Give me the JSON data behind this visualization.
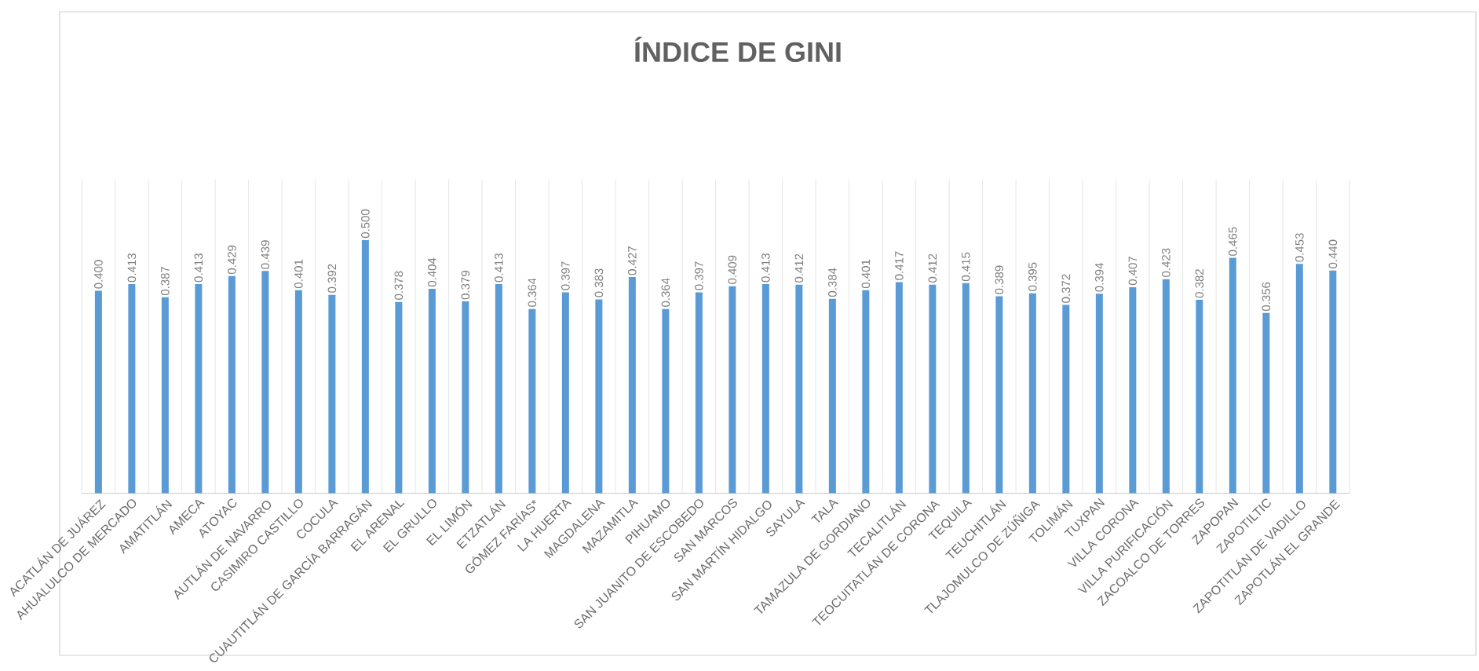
{
  "chart_data": {
    "type": "bar",
    "title": "ÍNDICE DE GINI",
    "categories": [
      "ACATLÁN DE JUÁREZ",
      "AHUALULCO DE MERCADO",
      "AMATITLÁN",
      "AMECA",
      "ATOYAC",
      "AUTLÁN DE NAVARRO",
      "CASIMIRO CASTILLO",
      "COCULA",
      "CUAUTITLÁN DE GARCÍA BARRAGÁN",
      "EL ARENAL",
      "EL GRULLO",
      "EL LIMÓN",
      "ETZATLÁN",
      "GÓMEZ FARÍAS*",
      "LA HUERTA",
      "MAGDALENA",
      "MAZAMITLA",
      "PIHUAMO",
      "SAN JUANITO DE ESCOBEDO",
      "SAN MARCOS",
      "SAN MARTÍN HIDALGO",
      "SAYULA",
      "TALA",
      "TAMAZULA DE GORDIANO",
      "TECALITLÁN",
      "TEOCUITATLÁN DE CORONA",
      "TEQUILA",
      "TEUCHITLÁN",
      "TLAJOMULCO DE ZÚÑIGA",
      "TOLIMÁN",
      "TUXPAN",
      "VILLA CORONA",
      "VILLA PURIFICACIÓN",
      "ZACOALCO DE TORRES",
      "ZAPOPAN",
      "ZAPOTILTIC",
      "ZAPOTITLÁN DE VADILLO",
      "ZAPOTLÁN EL GRANDE"
    ],
    "values": [
      0.4,
      0.413,
      0.387,
      0.413,
      0.429,
      0.439,
      0.401,
      0.392,
      0.5,
      0.378,
      0.404,
      0.379,
      0.413,
      0.364,
      0.397,
      0.383,
      0.427,
      0.364,
      0.397,
      0.409,
      0.413,
      0.412,
      0.384,
      0.401,
      0.417,
      0.412,
      0.415,
      0.389,
      0.395,
      0.372,
      0.394,
      0.407,
      0.423,
      0.382,
      0.465,
      0.356,
      0.453,
      0.44
    ],
    "value_labels": [
      "0.400",
      "0.413",
      "0.387",
      "0.413",
      "0.429",
      "0.439",
      "0.401",
      "0.392",
      "0.500",
      "0.378",
      "0.404",
      "0.379",
      "0.413",
      "0.364",
      "0.397",
      "0.383",
      "0.427",
      "0.364",
      "0.397",
      "0.409",
      "0.413",
      "0.412",
      "0.384",
      "0.401",
      "0.417",
      "0.412",
      "0.415",
      "0.389",
      "0.395",
      "0.372",
      "0.394",
      "0.407",
      "0.423",
      "0.382",
      "0.465",
      "0.356",
      "0.453",
      "0.440"
    ],
    "color": "#5b9bd5",
    "grid": "x"
  }
}
